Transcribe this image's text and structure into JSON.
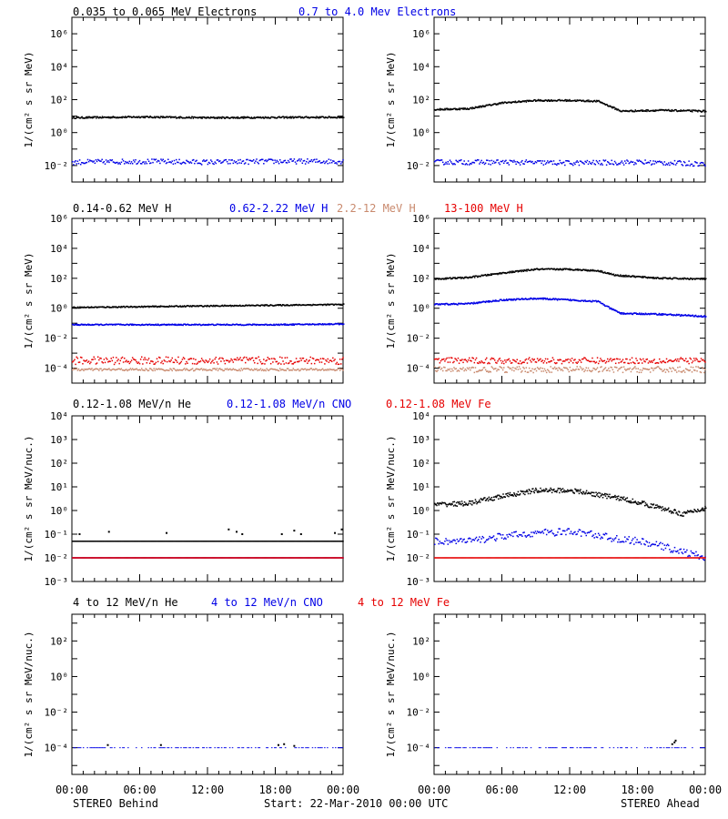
{
  "footer": {
    "left": "STEREO Behind",
    "center": "Start: 22-Mar-2010 00:00 UTC",
    "right": "STEREO Ahead"
  },
  "x_tick_labels": [
    "00:00",
    "06:00",
    "12:00",
    "18:00",
    "00:00"
  ],
  "colors": {
    "black": "#000000",
    "blue": "#0000e6",
    "tan": "#c98a6e",
    "red": "#e60000"
  },
  "chart_data": [
    {
      "type": "scatter",
      "row": 1,
      "title_segments": [
        {
          "text": "0.035 to 0.065 MeV Electrons",
          "color": "black"
        },
        {
          "text": "0.7 to 4.0 Mev Electrons",
          "color": "blue"
        }
      ],
      "ylabel": "1/(cm² s sr MeV)",
      "y_scale": "log",
      "ylim_exp": [
        -3,
        7
      ],
      "y_ticks": [
        {
          "exp": -2,
          "label": "10⁻²"
        },
        {
          "exp": 0,
          "label": "10⁰"
        },
        {
          "exp": 2,
          "label": "10²"
        },
        {
          "exp": 4,
          "label": "10⁴"
        },
        {
          "exp": 6,
          "label": "10⁶"
        }
      ],
      "x_range_hours": [
        0,
        24
      ],
      "panels": [
        {
          "name": "behind",
          "series": [
            {
              "color": "black",
              "x": [
                0,
                6,
                12,
                18,
                24
              ],
              "log10_y": [
                0.9,
                0.95,
                0.9,
                0.92,
                0.93
              ],
              "jitter": 0.05,
              "style": "line"
            },
            {
              "color": "blue",
              "x": [
                0,
                6,
                12,
                18,
                24
              ],
              "log10_y": [
                -1.8,
                -1.75,
                -1.8,
                -1.75,
                -1.75
              ],
              "jitter": 0.15,
              "style": "dots"
            }
          ]
        },
        {
          "name": "ahead",
          "series": [
            {
              "color": "black",
              "x": [
                0,
                3,
                6,
                9,
                12,
                14.5,
                16.5,
                20,
                24
              ],
              "log10_y": [
                1.4,
                1.45,
                1.8,
                1.95,
                1.95,
                1.9,
                1.3,
                1.35,
                1.3
              ],
              "jitter": 0.05,
              "style": "line"
            },
            {
              "color": "blue",
              "x": [
                0,
                6,
                12,
                18,
                24
              ],
              "log10_y": [
                -1.8,
                -1.8,
                -1.85,
                -1.8,
                -1.9
              ],
              "jitter": 0.15,
              "style": "dots"
            }
          ]
        }
      ]
    },
    {
      "type": "scatter",
      "row": 2,
      "title_segments": [
        {
          "text": "0.14-0.62 MeV H",
          "color": "black"
        },
        {
          "text": "0.62-2.22 MeV H",
          "color": "blue"
        },
        {
          "text": "2.2-12 MeV H",
          "color": "tan"
        },
        {
          "text": "13-100 MeV H",
          "color": "red"
        }
      ],
      "ylabel": "1/(cm² s sr MeV)",
      "y_scale": "log",
      "ylim_exp": [
        -5,
        6
      ],
      "y_ticks": [
        {
          "exp": -4,
          "label": "10⁻⁴"
        },
        {
          "exp": -2,
          "label": "10⁻²"
        },
        {
          "exp": 0,
          "label": "10⁰"
        },
        {
          "exp": 2,
          "label": "10²"
        },
        {
          "exp": 4,
          "label": "10⁴"
        },
        {
          "exp": 6,
          "label": "10⁶"
        }
      ],
      "x_range_hours": [
        0,
        24
      ],
      "panels": [
        {
          "name": "behind",
          "series": [
            {
              "color": "black",
              "x": [
                0,
                6,
                12,
                18,
                24
              ],
              "log10_y": [
                0.05,
                0.1,
                0.15,
                0.2,
                0.25
              ],
              "jitter": 0.04,
              "style": "line"
            },
            {
              "color": "blue",
              "x": [
                0,
                6,
                12,
                18,
                24
              ],
              "log10_y": [
                -1.1,
                -1.1,
                -1.1,
                -1.1,
                -1.05
              ],
              "jitter": 0.04,
              "style": "line"
            },
            {
              "color": "tan",
              "x": [
                0,
                24
              ],
              "log10_y": [
                -4.1,
                -4.1
              ],
              "jitter": 0.08,
              "style": "dots"
            },
            {
              "color": "red",
              "x": [
                0,
                24
              ],
              "log10_y": [
                -3.5,
                -3.5
              ],
              "jitter": 0.25,
              "style": "dots"
            }
          ]
        },
        {
          "name": "ahead",
          "series": [
            {
              "color": "black",
              "x": [
                0,
                3,
                6,
                9,
                12,
                14.5,
                16,
                20,
                24
              ],
              "log10_y": [
                1.95,
                2.05,
                2.35,
                2.6,
                2.6,
                2.5,
                2.2,
                2.0,
                1.95
              ],
              "jitter": 0.05,
              "style": "line"
            },
            {
              "color": "blue",
              "x": [
                0,
                3,
                6,
                9,
                12,
                14.5,
                15.5,
                16.5,
                20,
                24
              ],
              "log10_y": [
                0.25,
                0.3,
                0.55,
                0.65,
                0.55,
                0.45,
                0.0,
                -0.35,
                -0.4,
                -0.55
              ],
              "jitter": 0.05,
              "style": "line"
            },
            {
              "color": "tan",
              "x": [
                0,
                24
              ],
              "log10_y": [
                -4.1,
                -4.1
              ],
              "jitter": 0.2,
              "style": "dots"
            },
            {
              "color": "red",
              "x": [
                0,
                24
              ],
              "log10_y": [
                -3.5,
                -3.5
              ],
              "jitter": 0.2,
              "style": "dots"
            }
          ]
        }
      ]
    },
    {
      "type": "scatter",
      "row": 3,
      "title_segments": [
        {
          "text": "0.12-1.08 MeV/n He",
          "color": "black"
        },
        {
          "text": "0.12-1.08 MeV/n CNO",
          "color": "blue"
        },
        {
          "text": "0.12-1.08 MeV Fe",
          "color": "red"
        }
      ],
      "ylabel": "1/(cm² s sr MeV/nuc.)",
      "y_scale": "log",
      "ylim_exp": [
        -3,
        4
      ],
      "y_ticks": [
        {
          "exp": -3,
          "label": "10⁻³"
        },
        {
          "exp": -2,
          "label": "10⁻²"
        },
        {
          "exp": -1,
          "label": "10⁻¹"
        },
        {
          "exp": 0,
          "label": "10⁰"
        },
        {
          "exp": 1,
          "label": "10¹"
        },
        {
          "exp": 2,
          "label": "10²"
        },
        {
          "exp": 3,
          "label": "10³"
        },
        {
          "exp": 4,
          "label": "10⁴"
        }
      ],
      "x_range_hours": [
        0,
        24
      ],
      "panels": [
        {
          "name": "behind",
          "series": [
            {
              "color": "black",
              "x": [
                0,
                24
              ],
              "log10_y": [
                -1.3,
                -1.3
              ],
              "jitter": 0.0,
              "style": "dots",
              "outliers": [
                {
                  "x": 0.6,
                  "ly": -1.0
                },
                {
                  "x": 3.2,
                  "ly": -0.9
                },
                {
                  "x": 8.3,
                  "ly": -0.95
                },
                {
                  "x": 13.8,
                  "ly": -0.8
                },
                {
                  "x": 14.5,
                  "ly": -0.9
                },
                {
                  "x": 15.0,
                  "ly": -1.0
                },
                {
                  "x": 18.5,
                  "ly": -1.0
                },
                {
                  "x": 19.6,
                  "ly": -0.85
                },
                {
                  "x": 20.2,
                  "ly": -1.0
                },
                {
                  "x": 23.2,
                  "ly": -0.95
                },
                {
                  "x": 23.8,
                  "ly": -0.8
                }
              ]
            },
            {
              "color": "blue",
              "x": [
                0,
                24
              ],
              "log10_y": [
                -2.0,
                -2.0
              ],
              "jitter": 0.0,
              "style": "dots"
            },
            {
              "color": "red",
              "x": [
                0,
                24
              ],
              "log10_y": [
                -2.0,
                -2.0
              ],
              "jitter": 0.0,
              "style": "dots"
            }
          ]
        },
        {
          "name": "ahead",
          "series": [
            {
              "color": "black",
              "x": [
                0,
                3,
                6,
                9,
                12,
                14,
                16,
                18,
                20,
                22,
                24
              ],
              "log10_y": [
                0.25,
                0.3,
                0.6,
                0.85,
                0.85,
                0.7,
                0.55,
                0.35,
                0.1,
                -0.15,
                0.1
              ],
              "jitter": 0.1,
              "style": "line"
            },
            {
              "color": "blue",
              "x": [
                0,
                3,
                6,
                9,
                12,
                14,
                16,
                18,
                20,
                24
              ],
              "log10_y": [
                -1.3,
                -1.3,
                -1.1,
                -0.95,
                -0.9,
                -1.0,
                -1.2,
                -1.3,
                -1.5,
                -2.0
              ],
              "jitter": 0.15,
              "style": "dots"
            },
            {
              "color": "red",
              "x": [
                0,
                24
              ],
              "log10_y": [
                -2.0,
                -2.0
              ],
              "jitter": 0.0,
              "style": "dots"
            }
          ]
        }
      ]
    },
    {
      "type": "scatter",
      "row": 4,
      "title_segments": [
        {
          "text": "4 to 12 MeV/n He",
          "color": "black"
        },
        {
          "text": "4 to 12 MeV/n CNO",
          "color": "blue"
        },
        {
          "text": "4 to 12 MeV Fe",
          "color": "red"
        }
      ],
      "ylabel": "1/(cm² s sr MeV/nuc.)",
      "y_scale": "log",
      "ylim_exp": [
        -5.5,
        3.5
      ],
      "y_ticks": [
        {
          "exp": -4,
          "label": "10⁻⁴"
        },
        {
          "exp": -2,
          "label": "10⁻²"
        },
        {
          "exp": 0,
          "label": "10⁰"
        },
        {
          "exp": 2,
          "label": "10²"
        }
      ],
      "x_range_hours": [
        0,
        24
      ],
      "panels": [
        {
          "name": "behind",
          "series": [
            {
              "color": "blue",
              "x": [
                0,
                24
              ],
              "log10_y": [
                -4.0,
                -4.0
              ],
              "jitter": 0.0,
              "style": "sparse"
            },
            {
              "color": "black",
              "x": [
                0,
                24
              ],
              "log10_y": [
                -4.0,
                -4.0
              ],
              "jitter": 0.0,
              "style": "none",
              "outliers": [
                {
                  "x": 3.1,
                  "ly": -3.85
                },
                {
                  "x": 7.8,
                  "ly": -3.85
                },
                {
                  "x": 18.2,
                  "ly": -3.85
                },
                {
                  "x": 18.7,
                  "ly": -3.8
                },
                {
                  "x": 19.6,
                  "ly": -3.9
                }
              ]
            }
          ]
        },
        {
          "name": "ahead",
          "series": [
            {
              "color": "blue",
              "x": [
                0,
                24
              ],
              "log10_y": [
                -4.0,
                -4.0
              ],
              "jitter": 0.0,
              "style": "sparse"
            },
            {
              "color": "black",
              "x": [
                0,
                24
              ],
              "log10_y": [
                -4.0,
                -4.0
              ],
              "jitter": 0.0,
              "style": "none",
              "outliers": [
                {
                  "x": 21.0,
                  "ly": -3.8
                },
                {
                  "x": 21.2,
                  "ly": -3.7
                },
                {
                  "x": 21.3,
                  "ly": -3.6
                }
              ]
            }
          ]
        }
      ]
    }
  ]
}
